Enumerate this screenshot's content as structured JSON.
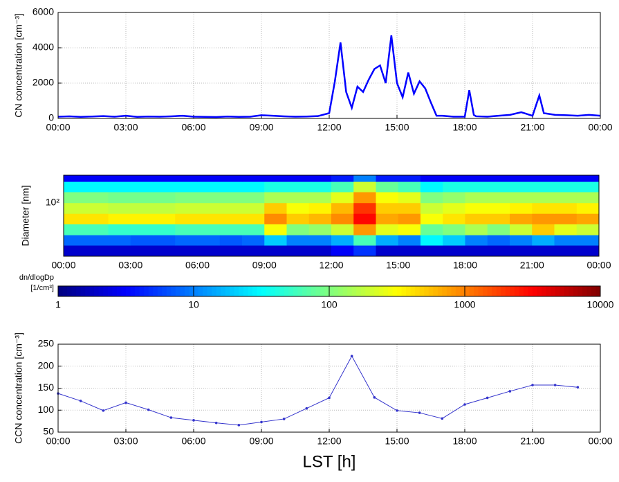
{
  "chart_data": [
    {
      "type": "line",
      "ylabel": "CN concentration [cm⁻³]",
      "color": "#0000ff",
      "grid": true,
      "x": [
        0,
        0.5,
        1,
        1.5,
        2,
        2.5,
        3,
        3.5,
        4,
        4.5,
        5,
        5.5,
        6,
        6.5,
        7,
        7.5,
        8,
        8.5,
        9,
        9.5,
        10,
        10.5,
        11,
        11.5,
        12,
        12.25,
        12.5,
        12.75,
        13,
        13.25,
        13.5,
        13.75,
        14,
        14.25,
        14.5,
        14.75,
        15,
        15.25,
        15.5,
        15.75,
        16,
        16.25,
        16.5,
        16.75,
        17,
        17.5,
        18,
        18.2,
        18.4,
        18.5,
        19,
        19.5,
        20,
        20.5,
        21,
        21.3,
        21.5,
        22,
        22.5,
        23,
        23.5,
        24
      ],
      "values": [
        100,
        120,
        90,
        110,
        130,
        100,
        150,
        90,
        110,
        100,
        120,
        150,
        100,
        90,
        80,
        110,
        90,
        100,
        180,
        150,
        120,
        100,
        110,
        130,
        300,
        2100,
        4300,
        1500,
        600,
        1800,
        1500,
        2200,
        2800,
        3000,
        2000,
        4700,
        2000,
        1200,
        2600,
        1400,
        2100,
        1700,
        900,
        150,
        150,
        100,
        100,
        1600,
        200,
        120,
        100,
        150,
        200,
        350,
        150,
        1300,
        300,
        200,
        180,
        150,
        200,
        150
      ],
      "xlim": [
        0,
        24
      ],
      "ylim": [
        0,
        6000
      ],
      "yticks": [
        0,
        2000,
        4000,
        6000
      ],
      "xticks": [
        {
          "value": 0,
          "label": "00:00"
        },
        {
          "value": 3,
          "label": "03:00"
        },
        {
          "value": 6,
          "label": "06:00"
        },
        {
          "value": 9,
          "label": "09:00"
        },
        {
          "value": 12,
          "label": "12:00"
        },
        {
          "value": 15,
          "label": "15:00"
        },
        {
          "value": 18,
          "label": "18:00"
        },
        {
          "value": 21,
          "label": "21:00"
        },
        {
          "value": 24,
          "label": "00:00"
        }
      ]
    },
    {
      "type": "heatmap",
      "ylabel": "Diameter [nm]",
      "ylog": true,
      "xbins": [
        0,
        1,
        2,
        3,
        4,
        5,
        6,
        7,
        8,
        9,
        10,
        11,
        12,
        13,
        14,
        15,
        16,
        17,
        18,
        19,
        20,
        21,
        22,
        23,
        24
      ],
      "ybins": [
        10,
        16,
        25,
        40,
        63,
        100,
        160,
        250,
        330
      ],
      "values": [
        [
          2,
          2,
          2,
          2,
          2,
          2,
          2,
          2,
          2,
          2,
          2,
          2,
          3,
          5,
          2,
          2,
          2,
          2,
          2,
          2,
          2,
          2,
          2,
          2
        ],
        [
          8,
          8,
          8,
          7,
          7,
          8,
          8,
          7,
          8,
          20,
          10,
          10,
          15,
          60,
          15,
          10,
          30,
          20,
          10,
          8,
          10,
          15,
          10,
          10
        ],
        [
          60,
          60,
          50,
          50,
          50,
          60,
          60,
          60,
          60,
          300,
          100,
          120,
          200,
          800,
          250,
          300,
          80,
          100,
          150,
          100,
          200,
          500,
          250,
          200
        ],
        [
          400,
          400,
          350,
          350,
          350,
          400,
          400,
          400,
          400,
          900,
          500,
          600,
          900,
          3000,
          700,
          800,
          300,
          400,
          500,
          500,
          700,
          800,
          800,
          700
        ],
        [
          200,
          200,
          180,
          180,
          180,
          200,
          200,
          200,
          200,
          500,
          300,
          350,
          600,
          2000,
          500,
          500,
          200,
          250,
          300,
          300,
          350,
          400,
          400,
          350
        ],
        [
          100,
          100,
          90,
          90,
          90,
          100,
          100,
          100,
          100,
          150,
          150,
          150,
          250,
          800,
          300,
          250,
          100,
          120,
          150,
          150,
          150,
          150,
          150,
          150
        ],
        [
          30,
          30,
          30,
          30,
          30,
          30,
          30,
          30,
          30,
          40,
          40,
          40,
          60,
          200,
          80,
          60,
          30,
          40,
          40,
          40,
          40,
          40,
          40,
          40
        ],
        [
          3,
          3,
          3,
          3,
          3,
          3,
          3,
          3,
          3,
          3,
          3,
          3,
          4,
          10,
          4,
          4,
          3,
          3,
          3,
          3,
          3,
          3,
          3,
          3
        ]
      ],
      "xlim": [
        0,
        24
      ],
      "ylim": [
        10,
        330
      ],
      "yticks": [
        {
          "value": 100,
          "label": "10²"
        }
      ],
      "xticks": [
        {
          "value": 0,
          "label": "00:00"
        },
        {
          "value": 3,
          "label": "03:00"
        },
        {
          "value": 6,
          "label": "06:00"
        },
        {
          "value": 9,
          "label": "09:00"
        },
        {
          "value": 12,
          "label": "12:00"
        },
        {
          "value": 15,
          "label": "15:00"
        },
        {
          "value": 18,
          "label": "18:00"
        },
        {
          "value": 21,
          "label": "21:00"
        },
        {
          "value": 24,
          "label": "00:00"
        }
      ],
      "colorbar": {
        "title": [
          "dn/dlogDp",
          "[1/cm³]"
        ],
        "colormap": "jet",
        "log": true,
        "lim": [
          1,
          10000
        ],
        "ticks": [
          1,
          10,
          100,
          1000,
          10000
        ]
      }
    },
    {
      "type": "line",
      "ylabel": "CCN concentration [cm⁻³]",
      "xlabel": "LST [h]",
      "color": "#3333cc",
      "grid": true,
      "markers": true,
      "x": [
        0,
        1,
        2,
        3,
        4,
        5,
        6,
        7,
        8,
        9,
        10,
        11,
        12,
        13,
        14,
        15,
        16,
        17,
        18,
        19,
        20,
        21,
        22,
        23
      ],
      "values": [
        138,
        121,
        99,
        117,
        101,
        83,
        77,
        71,
        66,
        73,
        80,
        104,
        128,
        223,
        129,
        99,
        94,
        81,
        113,
        128,
        143,
        157,
        157,
        152
      ],
      "xlim": [
        0,
        24
      ],
      "ylim": [
        50,
        250
      ],
      "yticks": [
        50,
        100,
        150,
        200,
        250
      ],
      "xticks": [
        {
          "value": 0,
          "label": "00:00"
        },
        {
          "value": 3,
          "label": "03:00"
        },
        {
          "value": 6,
          "label": "06:00"
        },
        {
          "value": 9,
          "label": "09:00"
        },
        {
          "value": 12,
          "label": "12:00"
        },
        {
          "value": 15,
          "label": "15:00"
        },
        {
          "value": 18,
          "label": "18:00"
        },
        {
          "value": 21,
          "label": "21:00"
        },
        {
          "value": 24,
          "label": "00:00"
        }
      ]
    }
  ]
}
